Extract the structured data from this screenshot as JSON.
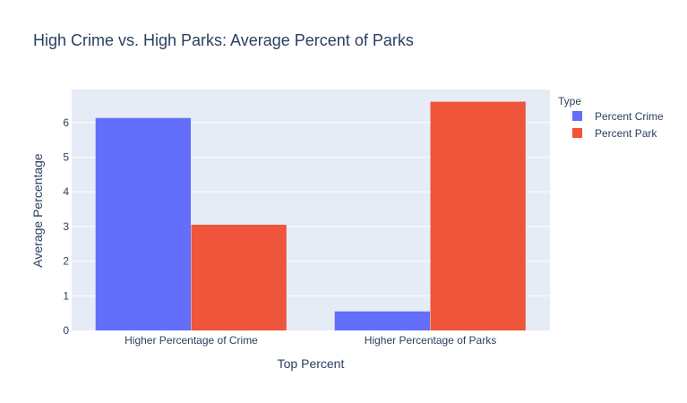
{
  "chart_data": {
    "type": "bar",
    "title": "High Crime vs. High Parks: Average Percent of Parks",
    "xlabel": "Top Percent",
    "ylabel": "Average Percentage",
    "categories": [
      "Higher Percentage of Crime",
      "Higher Percentage of Parks"
    ],
    "series": [
      {
        "name": "Percent Crime",
        "values": [
          6.13,
          0.55
        ],
        "color": "#636efa"
      },
      {
        "name": "Percent Park",
        "values": [
          3.05,
          6.6
        ],
        "color": "#ef553b"
      }
    ],
    "ylim": [
      0,
      6.95
    ],
    "yticks": [
      0,
      1,
      2,
      3,
      4,
      5,
      6
    ],
    "grid": true,
    "legend": {
      "title": "Type",
      "position": "top-right"
    },
    "plot_background": "#e5ecf6"
  }
}
